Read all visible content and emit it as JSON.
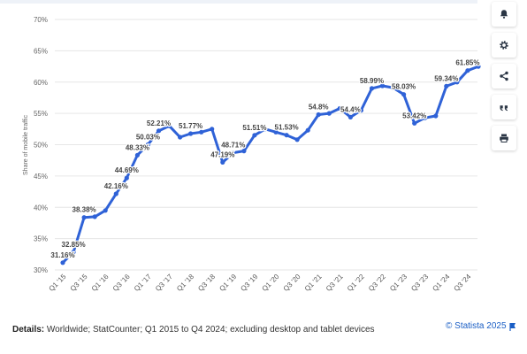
{
  "chart_data": {
    "type": "line",
    "title": "",
    "xlabel": "",
    "ylabel": "Share of mobile traffic",
    "ylim": [
      30,
      70
    ],
    "yticks": [
      "30%",
      "35%",
      "40%",
      "45%",
      "50%",
      "55%",
      "60%",
      "65%",
      "70%"
    ],
    "grid": true,
    "legend": "none",
    "line_color": "#2f62d7",
    "categories": [
      "Q1 '15",
      "Q2 '15",
      "Q3 '15",
      "Q4 '15",
      "Q1 '16",
      "Q2 '16",
      "Q3 '16",
      "Q4 '16",
      "Q1 '17",
      "Q2 '17",
      "Q3 '17",
      "Q4 '17",
      "Q1 '18",
      "Q2 '18",
      "Q3 '18",
      "Q4 '18",
      "Q1 '19",
      "Q2 '19",
      "Q3 '19",
      "Q4 '19",
      "Q1 '20",
      "Q2 '20",
      "Q3 '20",
      "Q4 '20",
      "Q1 '21",
      "Q2 '21",
      "Q3 '21",
      "Q4 '21",
      "Q1 '22",
      "Q2 '22",
      "Q3 '22",
      "Q4 '22",
      "Q1 '23",
      "Q2 '23",
      "Q3 '23",
      "Q4 '23",
      "Q1 '24",
      "Q2 '24",
      "Q3 '24",
      "Q4 '24"
    ],
    "tick_labels": [
      "Q1 '15",
      "Q3 '15",
      "Q1 '16",
      "Q3 '16",
      "Q1 '17",
      "Q3 '17",
      "Q1 '18",
      "Q3 '18",
      "Q1 '19",
      "Q3 '19",
      "Q1 '20",
      "Q3 '20",
      "Q1 '21",
      "Q3 '21",
      "Q1 '22",
      "Q3 '22",
      "Q1 '23",
      "Q3 '23",
      "Q1 '24",
      "Q3 '24"
    ],
    "values": [
      31.16,
      32.85,
      38.38,
      38.5,
      39.5,
      42.16,
      44.69,
      48.33,
      50.03,
      52.21,
      53.0,
      51.2,
      51.77,
      52.0,
      52.5,
      47.19,
      48.71,
      49.0,
      51.51,
      52.5,
      52.0,
      51.53,
      50.8,
      52.3,
      54.8,
      55.0,
      55.8,
      54.4,
      55.5,
      58.99,
      59.4,
      59.1,
      58.03,
      53.42,
      54.3,
      54.6,
      59.34,
      60.0,
      61.85,
      62.5
    ],
    "data_labels": [
      {
        "index": 0,
        "text": "31.16%"
      },
      {
        "index": 1,
        "text": "32.85%"
      },
      {
        "index": 2,
        "text": "38.38%"
      },
      {
        "index": 5,
        "text": "42.16%"
      },
      {
        "index": 6,
        "text": "44.69%"
      },
      {
        "index": 7,
        "text": "48.33%"
      },
      {
        "index": 8,
        "text": "50.03%"
      },
      {
        "index": 9,
        "text": "52.21%"
      },
      {
        "index": 12,
        "text": "51.77%"
      },
      {
        "index": 15,
        "text": "47.19%"
      },
      {
        "index": 16,
        "text": "48.71%"
      },
      {
        "index": 18,
        "text": "51.51%"
      },
      {
        "index": 21,
        "text": "51.53%"
      },
      {
        "index": 24,
        "text": "54.8%"
      },
      {
        "index": 27,
        "text": "54.4%"
      },
      {
        "index": 29,
        "text": "58.99%"
      },
      {
        "index": 32,
        "text": "58.03%"
      },
      {
        "index": 33,
        "text": "53.42%"
      },
      {
        "index": 36,
        "text": "59.34%"
      },
      {
        "index": 38,
        "text": "61.85%"
      }
    ]
  },
  "sidebar": {
    "buttons": [
      {
        "icon": "bell-icon"
      },
      {
        "icon": "gear-icon"
      },
      {
        "icon": "share-icon"
      },
      {
        "icon": "quote-icon"
      },
      {
        "icon": "print-icon"
      }
    ]
  },
  "footer": {
    "details_label": "Details:",
    "details_text": "Worldwide; StatCounter; Q1 2015 to Q4 2024; excluding desktop and tablet devices",
    "credit": "© Statista 2025"
  }
}
